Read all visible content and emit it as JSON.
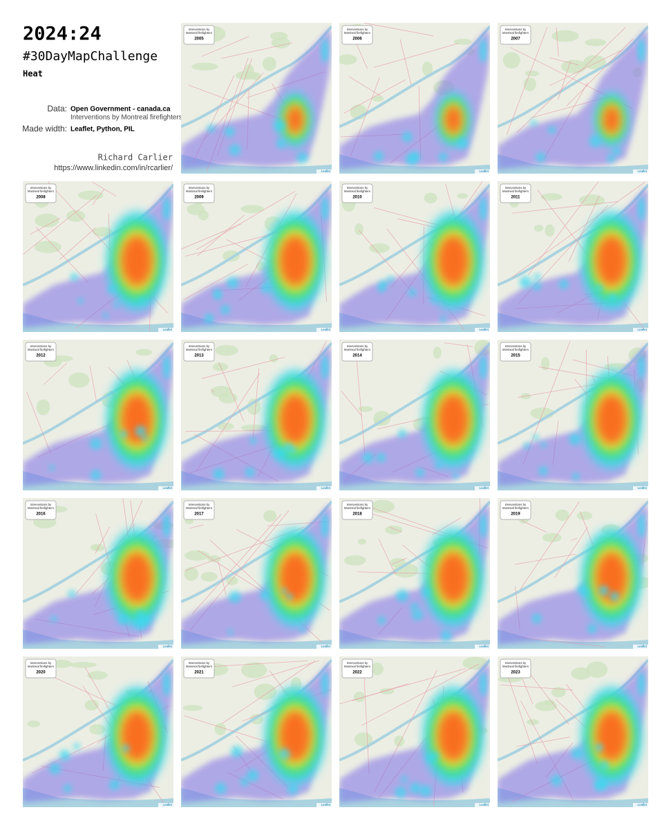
{
  "header": {
    "title": "2024:24",
    "challenge": "#30DayMapChallenge",
    "theme": "Heat",
    "data_label": "Data:",
    "data_source": "Open Government - canada.ca",
    "data_description": "Interventions by Montreal firefighters",
    "made_label": "Made width:",
    "made_tools": "Leaflet, Python, PIL",
    "author": "Richard Carlier",
    "url": "https://www.linkedin.com/in/rcarlier/"
  },
  "maps": [
    {
      "legend": [
        "Interventions by",
        "Montreal firefighters"
      ],
      "year": "2005",
      "attribution": "Leaflet"
    },
    {
      "legend": [
        "Interventions by",
        "Montreal firefighters"
      ],
      "year": "2006",
      "attribution": "Leaflet"
    },
    {
      "legend": [
        "Interventions by",
        "Montreal firefighters"
      ],
      "year": "2007",
      "attribution": "Leaflet"
    },
    {
      "legend": [
        "Interventions by",
        "Montreal firefighters"
      ],
      "year": "2008",
      "attribution": "Leaflet"
    },
    {
      "legend": [
        "Interventions by",
        "Montreal firefighters"
      ],
      "year": "2009",
      "attribution": "Leaflet"
    },
    {
      "legend": [
        "Interventions by",
        "Montreal firefighters"
      ],
      "year": "2010",
      "attribution": "Leaflet"
    },
    {
      "legend": [
        "Interventions by",
        "Montreal firefighters"
      ],
      "year": "2011",
      "attribution": "Leaflet"
    },
    {
      "legend": [
        "Interventions by",
        "Montreal firefighters"
      ],
      "year": "2012",
      "attribution": "Leaflet"
    },
    {
      "legend": [
        "Interventions by",
        "Montreal firefighters"
      ],
      "year": "2013",
      "attribution": "Leaflet"
    },
    {
      "legend": [
        "Interventions by",
        "Montreal firefighters"
      ],
      "year": "2014",
      "attribution": "Leaflet"
    },
    {
      "legend": [
        "Interventions by",
        "Montreal firefighters"
      ],
      "year": "2015",
      "attribution": "Leaflet"
    },
    {
      "legend": [
        "Interventions by",
        "Montreal firefighters"
      ],
      "year": "2016",
      "attribution": "Leaflet"
    },
    {
      "legend": [
        "Interventions by",
        "Montreal firefighters"
      ],
      "year": "2017",
      "attribution": "Leaflet"
    },
    {
      "legend": [
        "Interventions by",
        "Montreal firefighters"
      ],
      "year": "2018",
      "attribution": "Leaflet"
    },
    {
      "legend": [
        "Interventions by",
        "Montreal firefighters"
      ],
      "year": "2019",
      "attribution": "Leaflet"
    },
    {
      "legend": [
        "Interventions by",
        "Montreal firefighters"
      ],
      "year": "2020",
      "attribution": "Leaflet"
    },
    {
      "legend": [
        "Interventions by",
        "Montreal firefighters"
      ],
      "year": "2021",
      "attribution": "Leaflet"
    },
    {
      "legend": [
        "Interventions by",
        "Montreal firefighters"
      ],
      "year": "2022",
      "attribution": "Leaflet"
    },
    {
      "legend": [
        "Interventions by",
        "Montreal firefighters"
      ],
      "year": "2023",
      "attribution": "Leaflet"
    }
  ]
}
